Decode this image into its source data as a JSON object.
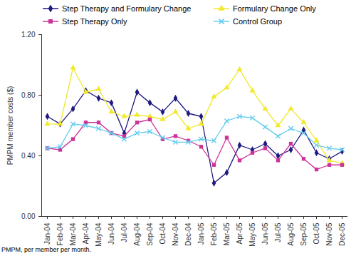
{
  "chart_data": {
    "type": "line",
    "y_label": "PMPM member costs ($)",
    "caption": "PMPM, per member per month.",
    "categories": [
      "Jan-04",
      "Feb-04",
      "Mar-04",
      "Apr-04",
      "May-04",
      "Jun-04",
      "Jul-04",
      "Aug-04",
      "Sep-04",
      "Oct-04",
      "Nov-04",
      "Dec-04",
      "Jan-05",
      "Feb-05",
      "Mar-05",
      "Apr-05",
      "May-05",
      "Jun-05",
      "Jul-05",
      "Aug-05",
      "Sep-05",
      "Oct-05",
      "Nov-05",
      "Dec-05"
    ],
    "series": [
      {
        "name": "Step Therapy and Formulary Change",
        "color": "#1f1a80",
        "marker": "diamond",
        "values": [
          0.66,
          0.61,
          0.71,
          0.83,
          0.78,
          0.75,
          0.55,
          0.82,
          0.75,
          0.69,
          0.78,
          0.68,
          0.66,
          0.22,
          0.29,
          0.47,
          0.44,
          0.48,
          0.4,
          0.44,
          0.57,
          0.42,
          0.38,
          0.43
        ]
      },
      {
        "name": "Formulary Change Only",
        "color": "#f2e82c",
        "marker": "triangle",
        "values": [
          0.61,
          0.61,
          0.98,
          0.82,
          0.84,
          0.69,
          0.66,
          0.67,
          0.66,
          0.64,
          0.69,
          0.58,
          0.61,
          0.79,
          0.85,
          0.97,
          0.83,
          0.71,
          0.6,
          0.71,
          0.62,
          0.5,
          0.37,
          0.35
        ]
      },
      {
        "name": "Step Therapy Only",
        "color": "#cc3399",
        "marker": "square",
        "values": [
          0.45,
          0.44,
          0.51,
          0.62,
          0.62,
          0.55,
          0.53,
          0.62,
          0.64,
          0.51,
          0.53,
          0.5,
          0.46,
          0.34,
          0.52,
          0.37,
          0.42,
          0.45,
          0.37,
          0.48,
          0.38,
          0.31,
          0.34,
          0.34
        ]
      },
      {
        "name": "Control Group",
        "color": "#66ccee",
        "marker": "x",
        "values": [
          0.45,
          0.46,
          0.61,
          0.6,
          0.58,
          0.55,
          0.51,
          0.55,
          0.56,
          0.52,
          0.49,
          0.49,
          0.51,
          0.5,
          0.63,
          0.66,
          0.65,
          0.59,
          0.53,
          0.58,
          0.55,
          0.47,
          0.45,
          0.44
        ]
      }
    ],
    "ylim": [
      0,
      1.2
    ],
    "yticks": [
      {
        "value": 0,
        "label": "0.00"
      },
      {
        "value": 0.4,
        "label": "0.40"
      },
      {
        "value": 0.8,
        "label": "0.80"
      },
      {
        "value": 1.2,
        "label": "1.20"
      }
    ],
    "legend": "top",
    "grid": false
  }
}
